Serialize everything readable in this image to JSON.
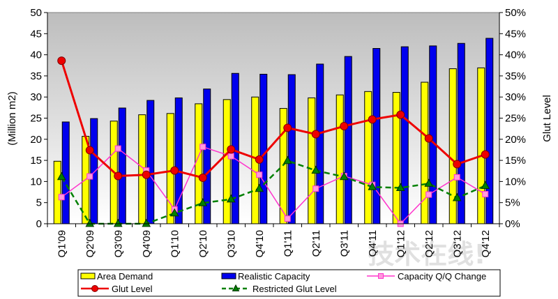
{
  "chart_data": {
    "type": "bar",
    "categories": [
      "Q1'09",
      "Q2'09",
      "Q3'09",
      "Q4'09",
      "Q1'10",
      "Q2'10",
      "Q3'10",
      "Q4'10",
      "Q1'11",
      "Q2'11",
      "Q3'11",
      "Q4'11",
      "Q1'12",
      "Q2'12",
      "Q3'12",
      "Q4'12"
    ],
    "ylabel": "(Million m2)",
    "ylabel_right": "Glut Level",
    "ylim": [
      0,
      50
    ],
    "y_ticks": [
      "0",
      "5",
      "10",
      "15",
      "20",
      "25",
      "30",
      "35",
      "40",
      "45",
      "50"
    ],
    "ylim_right": [
      0,
      50
    ],
    "y_right_ticks": [
      "0%",
      "5%",
      "10%",
      "15%",
      "20%",
      "25%",
      "30%",
      "35%",
      "40%",
      "45%",
      "50%"
    ],
    "grid": false,
    "legend_position": "bottom",
    "bar_series": [
      {
        "name": "Area Demand",
        "color": "#ffff00",
        "values": [
          14.8,
          20.7,
          24.3,
          25.8,
          26.1,
          28.4,
          29.4,
          30.0,
          27.3,
          29.8,
          30.5,
          31.3,
          31.1,
          33.5,
          36.7,
          36.9
        ]
      },
      {
        "name": "Realistic Capacity",
        "color": "#0000ee",
        "values": [
          24.1,
          24.9,
          27.4,
          29.2,
          29.8,
          31.9,
          35.6,
          35.4,
          35.3,
          37.8,
          39.6,
          41.5,
          41.9,
          42.1,
          42.7,
          43.9
        ]
      }
    ],
    "line_series": [
      {
        "name": "Glut Level",
        "axis": "right",
        "color": "#ee0000",
        "values": [
          38.6,
          17.4,
          11.3,
          11.6,
          12.6,
          10.9,
          17.6,
          15.2,
          22.7,
          21.2,
          23.1,
          24.7,
          25.8,
          20.2,
          14.1,
          16.4
        ]
      },
      {
        "name": "Restricted Glut Level",
        "axis": "right",
        "color": "#008000",
        "dashed": true,
        "values": [
          11.1,
          0.0,
          0.0,
          0.0,
          2.5,
          4.9,
          5.8,
          8.3,
          14.9,
          12.6,
          11.1,
          8.7,
          8.5,
          9.5,
          6.1,
          9.0
        ]
      },
      {
        "name": "Capacity Q/Q Change",
        "axis": "right",
        "color": "#ff33cc",
        "values": [
          6.3,
          11.2,
          17.8,
          12.6,
          3.4,
          18.2,
          16.0,
          11.6,
          1.2,
          8.3,
          11.3,
          9.2,
          -1.5,
          6.9,
          11.0,
          7.0
        ]
      }
    ]
  },
  "watermark": "技术在线!",
  "colors": {
    "plot_bg_top": "#bdbdbd",
    "plot_bg_bottom": "#ffffff"
  }
}
